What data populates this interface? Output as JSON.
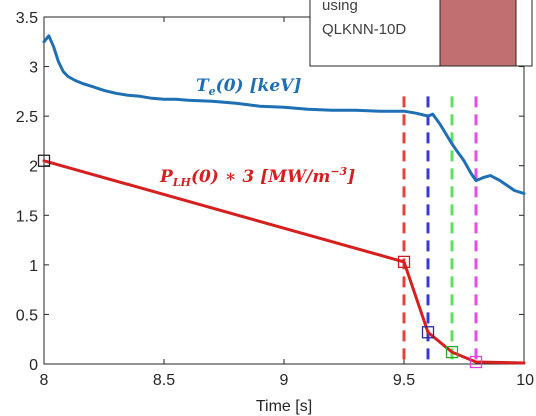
{
  "chart_data": {
    "type": "line",
    "xlabel": "Time [s]",
    "ylabel": "",
    "xlim": [
      8,
      10
    ],
    "ylim": [
      0,
      3.5
    ],
    "x_ticks": [
      8,
      8.5,
      9,
      9.5,
      10
    ],
    "x_tick_labels": [
      "8",
      "8.5",
      "9",
      "9.5",
      "10"
    ],
    "y_ticks": [
      0,
      0.5,
      1,
      1.5,
      2,
      2.5,
      3,
      3.5
    ],
    "y_tick_labels": [
      "0",
      "0.5",
      "1",
      "1.5",
      "2",
      "2.5",
      "3",
      "3.5"
    ],
    "grid": false,
    "series": [
      {
        "name": "T_e(0) [keV]",
        "color": "#1f6fb4",
        "x": [
          8.0,
          8.02,
          8.04,
          8.06,
          8.08,
          8.1,
          8.13,
          8.16,
          8.2,
          8.25,
          8.3,
          8.35,
          8.4,
          8.45,
          8.5,
          8.55,
          8.6,
          8.7,
          8.8,
          8.9,
          9.0,
          9.1,
          9.2,
          9.3,
          9.4,
          9.45,
          9.5,
          9.55,
          9.6,
          9.62,
          9.65,
          9.68,
          9.7,
          9.72,
          9.75,
          9.78,
          9.8,
          9.83,
          9.86,
          9.9,
          9.93,
          9.96,
          10.0
        ],
        "y": [
          3.25,
          3.31,
          3.2,
          3.05,
          2.95,
          2.9,
          2.86,
          2.83,
          2.8,
          2.76,
          2.73,
          2.71,
          2.7,
          2.68,
          2.67,
          2.67,
          2.66,
          2.65,
          2.63,
          2.6,
          2.59,
          2.57,
          2.56,
          2.56,
          2.55,
          2.55,
          2.55,
          2.53,
          2.5,
          2.52,
          2.42,
          2.3,
          2.22,
          2.15,
          2.05,
          1.92,
          1.85,
          1.88,
          1.9,
          1.85,
          1.8,
          1.75,
          1.72
        ]
      },
      {
        "name": "P_LH(0) * 3 [MW/m^-3]",
        "color": "#d61f1f",
        "x": [
          8.0,
          9.5,
          9.6,
          9.7,
          9.8,
          10.0
        ],
        "y": [
          2.05,
          1.03,
          0.32,
          0.12,
          0.02,
          0.01
        ]
      }
    ],
    "markers": [
      {
        "x": 8.0,
        "y": 2.05,
        "color": "#222222"
      },
      {
        "x": 9.5,
        "y": 1.03,
        "color": "#c81e1e"
      },
      {
        "x": 9.6,
        "y": 0.32,
        "color": "#2a2a9a"
      },
      {
        "x": 9.7,
        "y": 0.12,
        "color": "#2ea82e"
      },
      {
        "x": 9.8,
        "y": 0.02,
        "color": "#e040e0"
      }
    ],
    "vlines": [
      {
        "x": 9.5,
        "color": "#e8413c"
      },
      {
        "x": 9.6,
        "color": "#3a3ad0"
      },
      {
        "x": 9.7,
        "color": "#5de05d"
      },
      {
        "x": 9.8,
        "color": "#e64ce6"
      }
    ],
    "annotations": {
      "te_label": {
        "base": "T",
        "sub": "e",
        "rest": "(0) [keV]",
        "color": "#1f6fb4"
      },
      "plh_label": {
        "base": "P",
        "sub": "LH",
        "rest": "(0) ∗ 3 [MW/m",
        "sup": "−3",
        "tail": "]",
        "color": "#d61f1f"
      }
    },
    "inset_note": {
      "lines": [
        "using",
        "QLKNN-10D"
      ],
      "swatch_color": "#c07070"
    }
  }
}
